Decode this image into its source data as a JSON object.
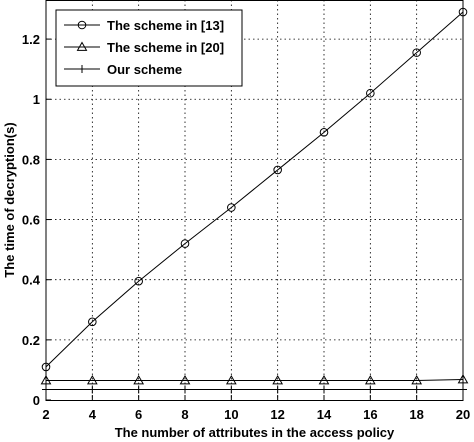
{
  "chart_data": {
    "type": "line",
    "xlabel": "The number of attributes in the access policy",
    "ylabel": "The time of decryption(s)",
    "x": [
      2,
      4,
      6,
      8,
      10,
      12,
      14,
      16,
      18,
      20
    ],
    "xlim": [
      2,
      20
    ],
    "ylim": [
      0,
      1.33
    ],
    "xticks": [
      "2",
      "4",
      "6",
      "8",
      "10",
      "12",
      "14",
      "16",
      "18",
      "20"
    ],
    "yticks": [
      "0",
      "0.2",
      "0.4",
      "0.6",
      "0.8",
      "1",
      "1.2"
    ],
    "ytick_values": [
      0,
      0.2,
      0.4,
      0.6,
      0.8,
      1.0,
      1.2
    ],
    "grid": true,
    "legend_position": "top-left",
    "series": [
      {
        "name": "The scheme in [13]",
        "marker": "circle",
        "values": [
          0.11,
          0.26,
          0.395,
          0.52,
          0.64,
          0.765,
          0.89,
          1.02,
          1.155,
          1.29
        ]
      },
      {
        "name": "The scheme in [20]",
        "marker": "triangle",
        "values": [
          0.065,
          0.065,
          0.065,
          0.065,
          0.065,
          0.065,
          0.065,
          0.065,
          0.065,
          0.068
        ]
      },
      {
        "name": "Our scheme",
        "marker": "plus",
        "values": [
          0.035,
          0.035,
          0.035,
          0.035,
          0.035,
          0.035,
          0.035,
          0.035,
          0.035,
          0.035
        ]
      }
    ]
  }
}
